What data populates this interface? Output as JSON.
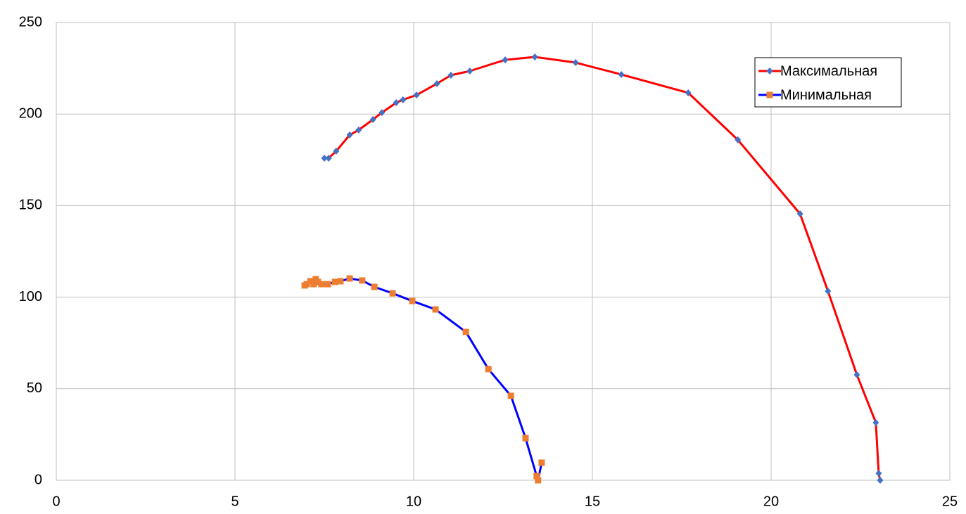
{
  "chart_data": {
    "type": "scatter-line",
    "xlim": [
      0,
      25
    ],
    "xticks": [
      0,
      5,
      10,
      15,
      20,
      25
    ],
    "ylim": [
      0,
      250
    ],
    "yticks": [
      0,
      50,
      100,
      150,
      200,
      250
    ],
    "grid": true,
    "legend": "top-right",
    "series": [
      {
        "name": "Максимальная",
        "color": "#ff0000",
        "marker_color": "#4472c4",
        "marker": "diamond",
        "x": [
          7.5,
          7.62,
          7.83,
          8.21,
          8.46,
          8.86,
          9.11,
          9.51,
          9.7,
          10.08,
          10.65,
          11.04,
          11.57,
          12.56,
          13.39,
          14.53,
          15.81,
          17.68,
          19.07,
          20.81,
          21.59,
          22.4,
          22.93,
          23.01,
          23.05
        ],
        "values": [
          175.9,
          175.9,
          179.7,
          188.6,
          191.3,
          197,
          200.8,
          206.2,
          207.8,
          210.4,
          216.6,
          221.2,
          223.5,
          229.6,
          231.2,
          228.1,
          221.6,
          211.6,
          185.9,
          145.5,
          103.3,
          57.6,
          31.5,
          3.8,
          0
        ]
      },
      {
        "name": "Минимальная",
        "color": "#0000ff",
        "marker_color": "#ed7d31",
        "marker": "square",
        "x": [
          6.95,
          7.01,
          7.11,
          7.2,
          7.26,
          7.32,
          7.42,
          7.6,
          7.8,
          7.95,
          8.21,
          8.56,
          8.9,
          9.41,
          9.96,
          10.61,
          11.46,
          12.09,
          12.72,
          13.13,
          13.44,
          13.48,
          13.58
        ],
        "values": [
          106.4,
          107.1,
          108.7,
          107.1,
          109.8,
          108.3,
          107.1,
          107.1,
          108.3,
          108.7,
          110.2,
          109.1,
          105.6,
          102.1,
          97.9,
          93.3,
          81.0,
          60.7,
          46.1,
          23.0,
          2.3,
          0,
          9.6
        ]
      }
    ]
  }
}
